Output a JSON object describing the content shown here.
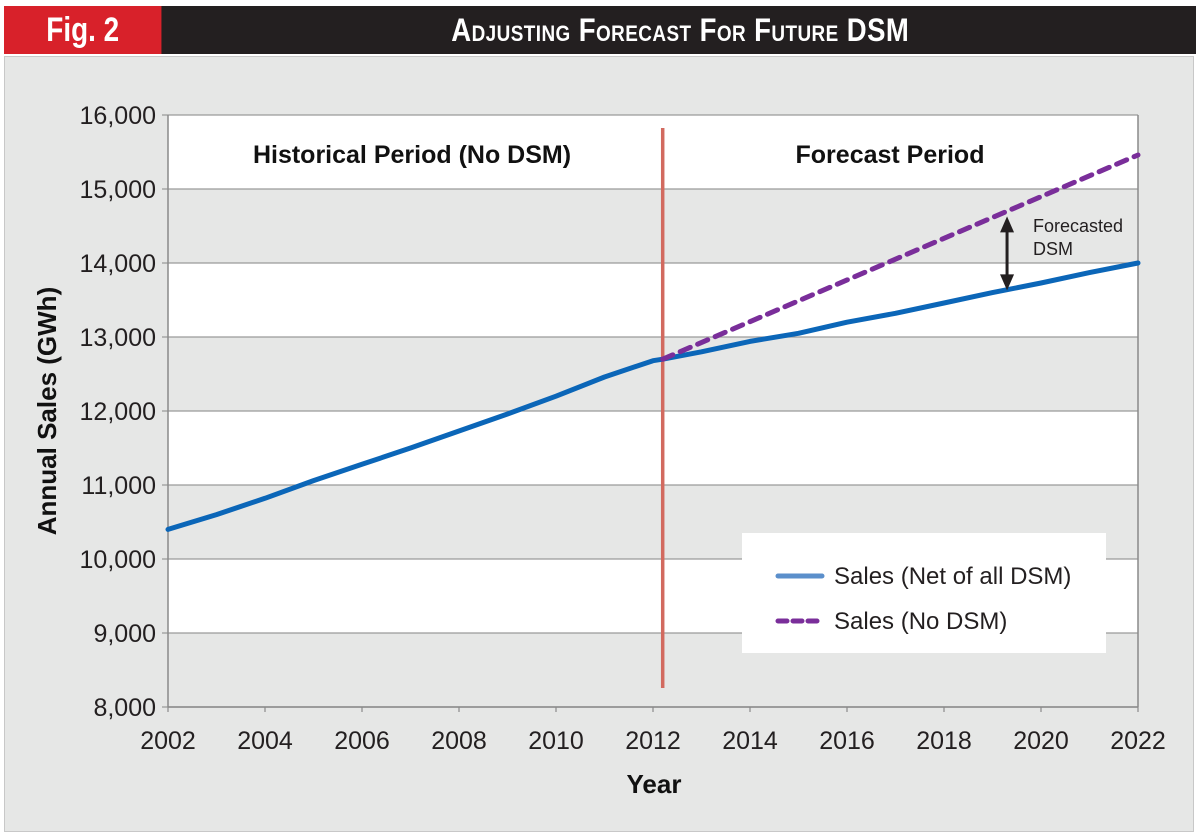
{
  "header": {
    "fig_label": "Fig. 2",
    "title": "Adjusting Forecast For Future DSM"
  },
  "colors": {
    "header_bg": "#231f20",
    "fig_label_bg": "#d8212a",
    "net_series": "#0b66b8",
    "nodsm_series": "#7a2e9a",
    "divider": "#d26a5f",
    "band_white": "#ffffff",
    "band_gray": "#e6e7e6"
  },
  "chart_data": {
    "type": "line",
    "title": "Adjusting Forecast For Future DSM",
    "xlabel": "Year",
    "ylabel": "Annual Sales (GWh)",
    "xlim": [
      2002,
      2022
    ],
    "ylim": [
      8000,
      16000
    ],
    "x_ticks": [
      2002,
      2004,
      2006,
      2008,
      2010,
      2012,
      2014,
      2016,
      2018,
      2020,
      2022
    ],
    "x_tick_labels": [
      "2002",
      "2004",
      "2006",
      "2008",
      "2010",
      "2012",
      "2014",
      "2016",
      "2018",
      "2020",
      "2022"
    ],
    "y_ticks": [
      8000,
      9000,
      10000,
      11000,
      12000,
      13000,
      14000,
      15000,
      16000
    ],
    "y_tick_labels": [
      "8,000",
      "9,000",
      "10,000",
      "11,000",
      "12,000",
      "13,000",
      "14,000",
      "15,000",
      "16,000"
    ],
    "grid": true,
    "divider_year": 2012.2,
    "period_labels": [
      "Historical Period (No DSM)",
      "Forecast Period"
    ],
    "annotation": {
      "text_lines": [
        "Forecasted",
        "DSM"
      ],
      "x": 2019.3,
      "from": 13630,
      "to": 14630
    },
    "legend": {
      "placement": "bottom-right",
      "entries": [
        "Sales (Net of all DSM)",
        "Sales (No DSM)"
      ]
    },
    "series": [
      {
        "name": "Sales (Net of all DSM)",
        "style": "solid",
        "x": [
          2002,
          2003,
          2004,
          2005,
          2006,
          2007,
          2008,
          2009,
          2010,
          2011,
          2012,
          2012.2,
          2013,
          2014,
          2015,
          2016,
          2017,
          2018,
          2019,
          2020,
          2021,
          2022
        ],
        "values": [
          10400,
          10600,
          10820,
          11060,
          11280,
          11500,
          11730,
          11960,
          12200,
          12460,
          12680,
          12700,
          12800,
          12940,
          13050,
          13200,
          13320,
          13460,
          13600,
          13730,
          13870,
          14000
        ]
      },
      {
        "name": "Sales (No DSM)",
        "style": "dashed",
        "x": [
          2012.2,
          2022
        ],
        "values": [
          12700,
          15460
        ]
      }
    ]
  }
}
